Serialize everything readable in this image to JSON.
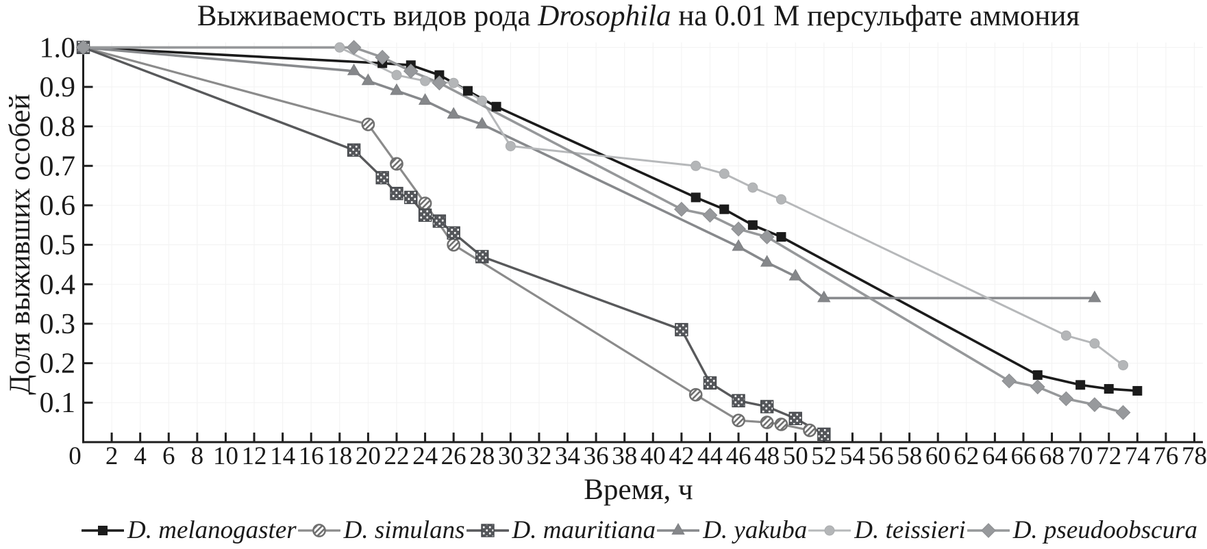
{
  "title": {
    "before_italic": "Выживаемость видов рода ",
    "italic": "Drosophila",
    "after_italic": " на 0.01 М персульфате аммония"
  },
  "chart_data": {
    "type": "line",
    "title": "Выживаемость видов рода Drosophila на 0.01 М персульфате аммония",
    "xlabel": "Время, ч",
    "ylabel": "Доля выживших особей",
    "xlim": [
      0,
      78
    ],
    "ylim": [
      0,
      1.0
    ],
    "x_tick_step": 2,
    "y_tick_step": 0.1,
    "x_tick_labels": [
      "0",
      "2",
      "4",
      "6",
      "8",
      "10",
      "12",
      "14",
      "16",
      "18",
      "20",
      "22",
      "24",
      "26",
      "28",
      "30",
      "32",
      "34",
      "36",
      "38",
      "40",
      "42",
      "44",
      "46",
      "48",
      "50",
      "52",
      "54",
      "56",
      "58",
      "60",
      "62",
      "64",
      "66",
      "68",
      "70",
      "72",
      "74",
      "76",
      "78"
    ],
    "y_tick_labels": [
      "0.1",
      "0.2",
      "0.3",
      "0.4",
      "0.5",
      "0.6",
      "0.7",
      "0.8",
      "0.9",
      "1.0"
    ],
    "grid": true,
    "legend_position": "bottom",
    "series": [
      {
        "name": "D. melanogaster",
        "color": "#1b1b1b",
        "marker": "filled-square",
        "points": [
          [
            0,
            1.0
          ],
          [
            21,
            0.96
          ],
          [
            23,
            0.955
          ],
          [
            25,
            0.93
          ],
          [
            27,
            0.89
          ],
          [
            29,
            0.85
          ],
          [
            43,
            0.62
          ],
          [
            45,
            0.59
          ],
          [
            47,
            0.55
          ],
          [
            49,
            0.52
          ],
          [
            67,
            0.17
          ],
          [
            70,
            0.145
          ],
          [
            72,
            0.135
          ],
          [
            74,
            0.13
          ]
        ]
      },
      {
        "name": "D. simulans",
        "color": "#8b8b8b",
        "marker": "hatched-circle",
        "points": [
          [
            0,
            1.0
          ],
          [
            20,
            0.805
          ],
          [
            22,
            0.705
          ],
          [
            24,
            0.605
          ],
          [
            26,
            0.5
          ],
          [
            43,
            0.12
          ],
          [
            46,
            0.055
          ],
          [
            48,
            0.05
          ],
          [
            49,
            0.045
          ],
          [
            51,
            0.03
          ]
        ]
      },
      {
        "name": "D. mauritiana",
        "color": "#58595b",
        "marker": "dotted-square",
        "points": [
          [
            0,
            1.0
          ],
          [
            19,
            0.74
          ],
          [
            21,
            0.67
          ],
          [
            22,
            0.63
          ],
          [
            23,
            0.62
          ],
          [
            24,
            0.575
          ],
          [
            25,
            0.56
          ],
          [
            26,
            0.53
          ],
          [
            28,
            0.47
          ],
          [
            42,
            0.285
          ],
          [
            44,
            0.15
          ],
          [
            46,
            0.105
          ],
          [
            48,
            0.09
          ],
          [
            50,
            0.06
          ],
          [
            52,
            0.02
          ]
        ]
      },
      {
        "name": "D. yakuba",
        "color": "#87898c",
        "marker": "filled-triangle",
        "points": [
          [
            0,
            1.0
          ],
          [
            19,
            0.94
          ],
          [
            20,
            0.915
          ],
          [
            22,
            0.89
          ],
          [
            24,
            0.865
          ],
          [
            26,
            0.83
          ],
          [
            28,
            0.805
          ],
          [
            46,
            0.495
          ],
          [
            48,
            0.455
          ],
          [
            50,
            0.42
          ],
          [
            52,
            0.365
          ],
          [
            71,
            0.365
          ]
        ]
      },
      {
        "name": "D. teissieri",
        "color": "#b6b8ba",
        "marker": "filled-circle",
        "points": [
          [
            0,
            1.0
          ],
          [
            18,
            1.0
          ],
          [
            22,
            0.93
          ],
          [
            24,
            0.915
          ],
          [
            26,
            0.91
          ],
          [
            28,
            0.865
          ],
          [
            30,
            0.75
          ],
          [
            43,
            0.7
          ],
          [
            45,
            0.68
          ],
          [
            47,
            0.645
          ],
          [
            49,
            0.615
          ],
          [
            69,
            0.27
          ],
          [
            71,
            0.25
          ],
          [
            73,
            0.195
          ]
        ]
      },
      {
        "name": "D. pseudoobscura",
        "color": "#96989a",
        "marker": "filled-diamond",
        "points": [
          [
            0,
            1.0
          ],
          [
            19,
            1.0
          ],
          [
            21,
            0.975
          ],
          [
            23,
            0.94
          ],
          [
            25,
            0.91
          ],
          [
            42,
            0.59
          ],
          [
            44,
            0.575
          ],
          [
            46,
            0.54
          ],
          [
            48,
            0.52
          ],
          [
            65,
            0.155
          ],
          [
            67,
            0.14
          ],
          [
            69,
            0.11
          ],
          [
            71,
            0.095
          ],
          [
            73,
            0.075
          ]
        ]
      }
    ]
  }
}
